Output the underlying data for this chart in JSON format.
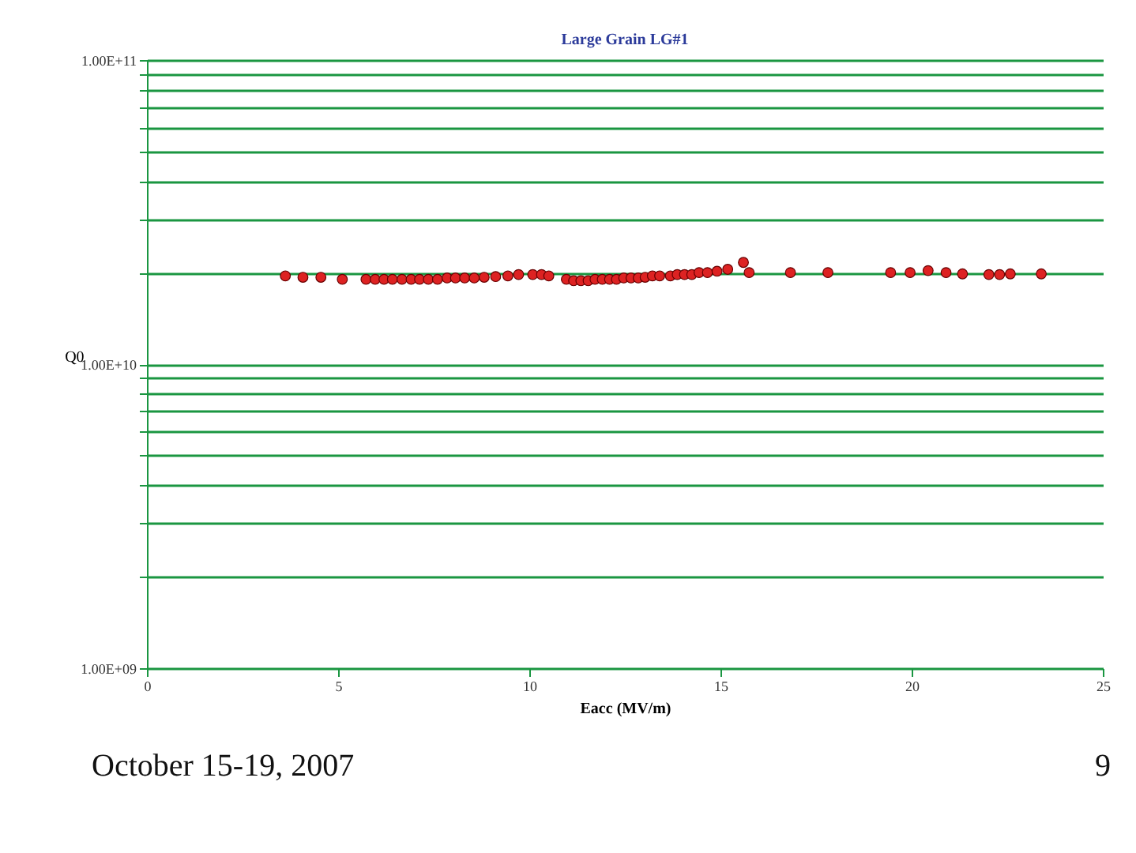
{
  "chart_data": {
    "type": "scatter",
    "title": "Large Grain LG#1",
    "xlabel": "Eacc (MV/m)",
    "ylabel": "Q0",
    "x": [
      3.62,
      4.08,
      4.55,
      5.11,
      5.73,
      5.97,
      6.2,
      6.42,
      6.67,
      6.91,
      7.13,
      7.36,
      7.6,
      7.85,
      8.07,
      8.31,
      8.56,
      8.82,
      9.12,
      9.44,
      9.72,
      10.09,
      10.32,
      10.51,
      10.97,
      11.16,
      11.35,
      11.54,
      11.72,
      11.91,
      12.1,
      12.28,
      12.47,
      12.66,
      12.85,
      13.03,
      13.22,
      13.41,
      13.69,
      13.87,
      14.06,
      14.25,
      14.44,
      14.66,
      14.91,
      15.19,
      15.6,
      15.75,
      16.83,
      17.81,
      19.45,
      19.96,
      20.43,
      20.9,
      21.33,
      22.02,
      22.3,
      22.58,
      23.39
    ],
    "series": [
      {
        "color": "#dd2222",
        "values": [
          19500000000.0,
          19300000000.0,
          19300000000.0,
          19000000000.0,
          19000000000.0,
          19000000000.0,
          19000000000.0,
          19000000000.0,
          19000000000.0,
          19000000000.0,
          19000000000.0,
          19000000000.0,
          19000000000.0,
          19200000000.0,
          19200000000.0,
          19200000000.0,
          19200000000.0,
          19300000000.0,
          19400000000.0,
          19500000000.0,
          19700000000.0,
          19700000000.0,
          19700000000.0,
          19500000000.0,
          19000000000.0,
          18800000000.0,
          18800000000.0,
          18800000000.0,
          19000000000.0,
          19000000000.0,
          19000000000.0,
          19000000000.0,
          19200000000.0,
          19200000000.0,
          19200000000.0,
          19300000000.0,
          19500000000.0,
          19500000000.0,
          19500000000.0,
          19700000000.0,
          19700000000.0,
          19700000000.0,
          20000000000.0,
          20000000000.0,
          20200000000.0,
          20500000000.0,
          21600000000.0,
          20000000000.0,
          20000000000.0,
          20000000000.0,
          20000000000.0,
          20000000000.0,
          20300000000.0,
          20000000000.0,
          19800000000.0,
          19700000000.0,
          19700000000.0,
          19800000000.0,
          19800000000.0
        ]
      }
    ],
    "xlim": [
      0,
      25
    ],
    "xticks": [
      0,
      5,
      10,
      15,
      20,
      25
    ],
    "ylim": [
      1000000000.0,
      100000000000.0
    ],
    "yticks": [
      {
        "value": 1000000000.0,
        "label": "1.00E+09"
      },
      {
        "value": 2000000000.0,
        "label": null
      },
      {
        "value": 3000000000.0,
        "label": null
      },
      {
        "value": 4000000000.0,
        "label": null
      },
      {
        "value": 5000000000.0,
        "label": null
      },
      {
        "value": 6000000000.0,
        "label": null
      },
      {
        "value": 7000000000.0,
        "label": null
      },
      {
        "value": 8000000000.0,
        "label": null
      },
      {
        "value": 9000000000.0,
        "label": null
      },
      {
        "value": 10000000000.0,
        "label": "1.00E+10"
      },
      {
        "value": 20000000000.0,
        "label": null
      },
      {
        "value": 30000000000.0,
        "label": null
      },
      {
        "value": 40000000000.0,
        "label": null
      },
      {
        "value": 50000000000.0,
        "label": null
      },
      {
        "value": 60000000000.0,
        "label": null
      },
      {
        "value": 70000000000.0,
        "label": null
      },
      {
        "value": 80000000000.0,
        "label": null
      },
      {
        "value": 90000000000.0,
        "label": null
      },
      {
        "value": 100000000000.0,
        "label": "1.00E+11"
      }
    ],
    "log": "y",
    "grid": "y",
    "marker": "circle",
    "annotations": [
      "October 15-19, 2007",
      "9"
    ]
  }
}
